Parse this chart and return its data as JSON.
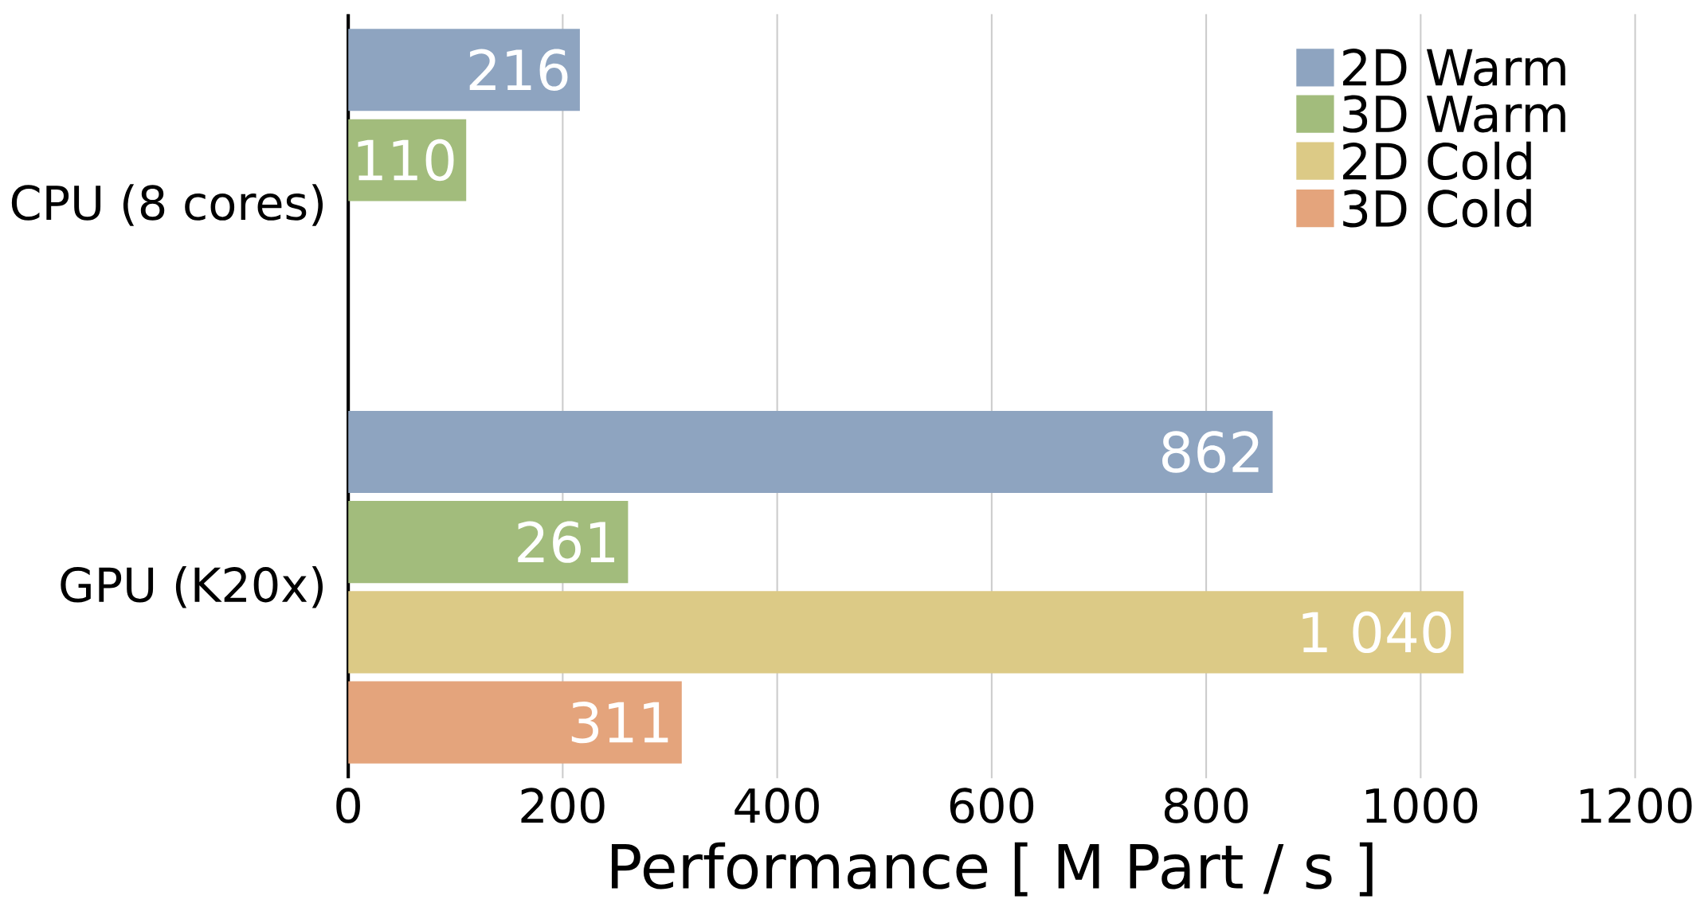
{
  "chart_data": {
    "type": "bar",
    "orientation": "horizontal",
    "xlabel": "Performance [ M Part / s ]",
    "categories": [
      "CPU (8 cores)",
      "GPU (K20x)"
    ],
    "series": [
      {
        "name": "2D Warm",
        "color": "#8ea4c0",
        "values": [
          216,
          862
        ],
        "value_labels": [
          "216",
          "862"
        ]
      },
      {
        "name": "3D Warm",
        "color": "#a2bc7c",
        "values": [
          110,
          261
        ],
        "value_labels": [
          "110",
          "261"
        ]
      },
      {
        "name": "2D Cold",
        "color": "#dcca86",
        "values": [
          null,
          1040
        ],
        "value_labels": [
          null,
          "1 040"
        ]
      },
      {
        "name": "3D Cold",
        "color": "#e4a47c",
        "values": [
          null,
          311
        ],
        "value_labels": [
          null,
          "311"
        ]
      }
    ],
    "xlim": [
      0,
      1200
    ],
    "xticks": [
      0,
      200,
      400,
      600,
      800,
      1000,
      1200
    ],
    "grid": "x",
    "legend": "top right"
  }
}
